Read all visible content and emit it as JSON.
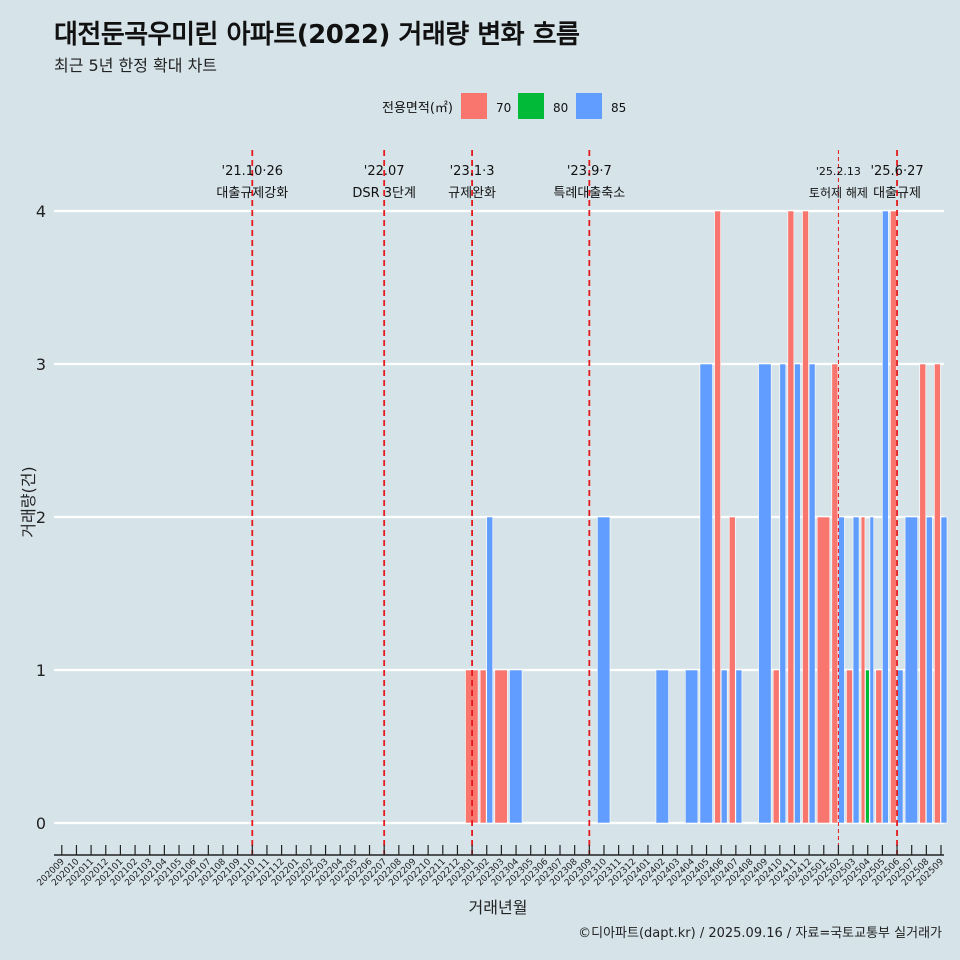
{
  "title": "대전둔곡우미린 아파트(2022) 거래량 변화 흐름",
  "subtitle": "최근 5년 한정 확대 차트",
  "caption": "©디아파트(dapt.kr) / 2025.09.16 / 자료=국토교통부 실거래가",
  "colors": {
    "background": "#d6e4ea",
    "s70": "#f8766d",
    "s80": "#00ba38",
    "s85": "#619cff",
    "event_line": "#e41a1c"
  },
  "chart_data": {
    "type": "bar",
    "xlabel": "거래년월",
    "ylabel": "거래량(건)",
    "ylim": [
      0,
      4
    ],
    "yticks": [
      0,
      1,
      2,
      3,
      4
    ],
    "legend": {
      "title": "전용면적(㎡)",
      "position": "top"
    },
    "categories": [
      "202009",
      "202010",
      "202011",
      "202012",
      "202101",
      "202102",
      "202103",
      "202104",
      "202105",
      "202106",
      "202107",
      "202108",
      "202109",
      "202110",
      "202111",
      "202112",
      "202201",
      "202202",
      "202203",
      "202204",
      "202205",
      "202206",
      "202207",
      "202208",
      "202209",
      "202210",
      "202211",
      "202212",
      "202301",
      "202302",
      "202303",
      "202304",
      "202305",
      "202306",
      "202307",
      "202308",
      "202309",
      "202310",
      "202311",
      "202312",
      "202401",
      "202402",
      "202403",
      "202404",
      "202405",
      "202406",
      "202407",
      "202408",
      "202409",
      "202410",
      "202411",
      "202412",
      "202501",
      "202502",
      "202503",
      "202504",
      "202505",
      "202506",
      "202507",
      "202508",
      "202509"
    ],
    "series": [
      {
        "name": "70",
        "color": "#f8766d",
        "values": [
          0,
          0,
          0,
          0,
          0,
          0,
          0,
          0,
          0,
          0,
          0,
          0,
          0,
          0,
          0,
          0,
          0,
          0,
          0,
          0,
          0,
          0,
          0,
          0,
          0,
          0,
          0,
          0,
          1,
          1,
          1,
          0,
          0,
          0,
          0,
          0,
          0,
          0,
          0,
          0,
          0,
          0,
          0,
          0,
          0,
          4,
          2,
          0,
          0,
          1,
          4,
          4,
          2,
          3,
          1,
          2,
          1,
          4,
          0,
          3,
          3
        ]
      },
      {
        "name": "80",
        "color": "#00ba38",
        "values": [
          0,
          0,
          0,
          0,
          0,
          0,
          0,
          0,
          0,
          0,
          0,
          0,
          0,
          0,
          0,
          0,
          0,
          0,
          0,
          0,
          0,
          0,
          0,
          0,
          0,
          0,
          0,
          0,
          0,
          0,
          0,
          0,
          0,
          0,
          0,
          0,
          0,
          0,
          0,
          0,
          0,
          0,
          0,
          0,
          0,
          0,
          0,
          0,
          0,
          0,
          0,
          0,
          0,
          0,
          0,
          1,
          0,
          0,
          0,
          0,
          0
        ]
      },
      {
        "name": "85",
        "color": "#619cff",
        "values": [
          0,
          0,
          0,
          0,
          0,
          0,
          0,
          0,
          0,
          0,
          0,
          0,
          0,
          0,
          0,
          0,
          0,
          0,
          0,
          0,
          0,
          0,
          0,
          0,
          0,
          0,
          0,
          0,
          0,
          2,
          0,
          1,
          0,
          0,
          0,
          0,
          0,
          2,
          0,
          0,
          0,
          1,
          0,
          1,
          3,
          1,
          1,
          0,
          3,
          3,
          3,
          3,
          0,
          2,
          2,
          2,
          4,
          1,
          2,
          2,
          2
        ]
      }
    ],
    "events": [
      {
        "month": "202110",
        "date": "'21.10·26",
        "label": "대출규제강화",
        "style": "dashed"
      },
      {
        "month": "202207",
        "date": "'22.07",
        "label": "DSR 3단계",
        "style": "dashed"
      },
      {
        "month": "202301",
        "date": "'23.1·3",
        "label": "규제완화",
        "style": "dashed"
      },
      {
        "month": "202309",
        "date": "'23.9·7",
        "label": "특례대출축소",
        "style": "dashed"
      },
      {
        "month": "202502",
        "date": "'25.2.13",
        "label": "토허제 해제",
        "style": "thin"
      },
      {
        "month": "202506",
        "date": "'25.6·27",
        "label": "대출규제",
        "style": "dashed"
      }
    ]
  }
}
